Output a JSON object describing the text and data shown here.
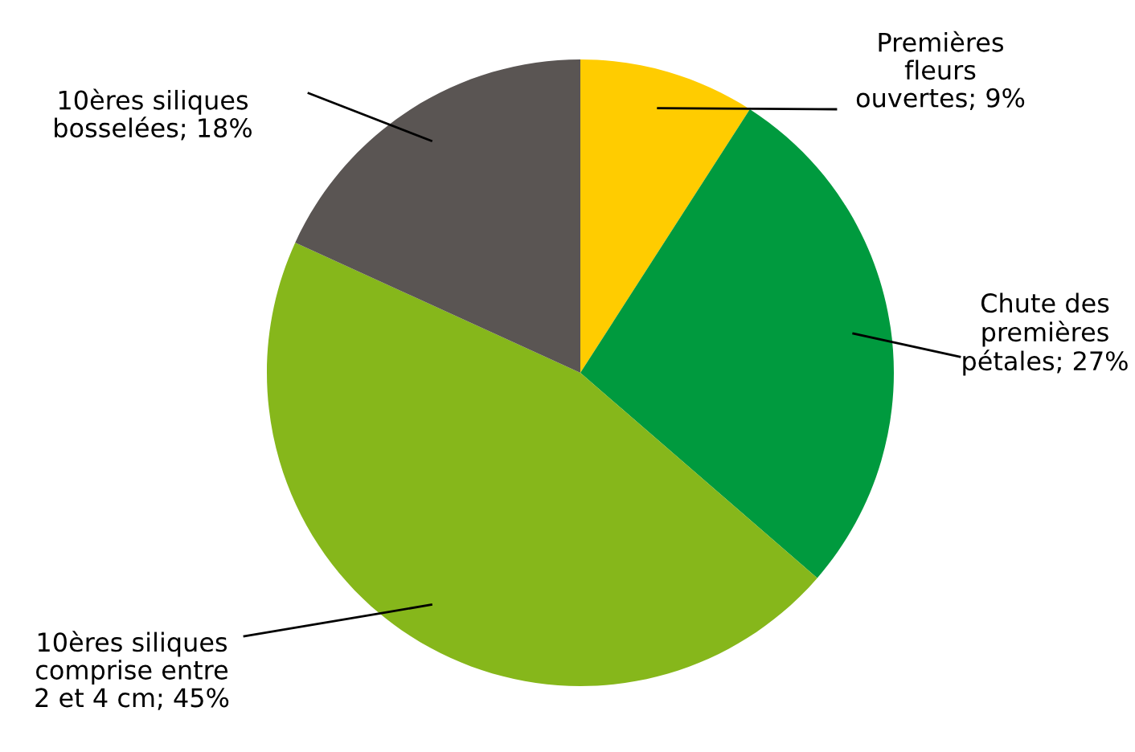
{
  "chart_data": {
    "type": "pie",
    "categories": [
      "Premières\nfleurs\nouvertes",
      "Chute des\npremières\npétales",
      "10ères siliques\ncomprise entre\n2 et 4 cm",
      "10ères siliques\nbosselées"
    ],
    "values": [
      9,
      27,
      45,
      18
    ],
    "value_labels": [
      "9%",
      "27%",
      "45%",
      "18%"
    ],
    "colors": [
      "#ffcc00",
      "#009a3e",
      "#86b71b",
      "#5a5553"
    ]
  }
}
